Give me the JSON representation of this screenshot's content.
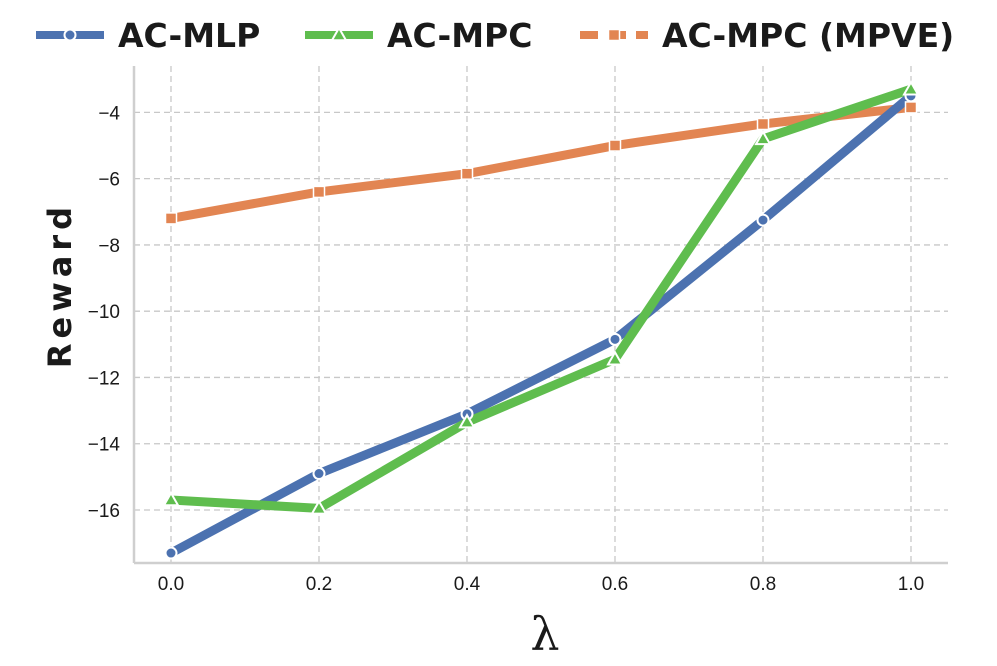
{
  "chart_data": {
    "type": "line",
    "title": "",
    "xlabel": "λ",
    "ylabel": "Reward",
    "x": [
      0.0,
      0.2,
      0.4,
      0.6,
      0.8,
      1.0
    ],
    "x_tick_labels": [
      "0.0",
      "0.2",
      "0.4",
      "0.6",
      "0.8",
      "1.0"
    ],
    "y_ticks": [
      -16,
      -14,
      -12,
      -10,
      -8,
      -6,
      -4
    ],
    "y_tick_labels": [
      "−16",
      "−14",
      "−12",
      "−10",
      "−8",
      "−6",
      "−4"
    ],
    "xlim": [
      -0.05,
      1.05
    ],
    "ylim": [
      -17.6,
      -2.6
    ],
    "grid": true,
    "legend_position": "top",
    "series": [
      {
        "name": "AC-MLP",
        "color": "#4c72b0",
        "marker": "circle",
        "linestyle": "solid",
        "values": [
          -17.3,
          -14.9,
          -13.1,
          -10.85,
          -7.25,
          -3.5
        ]
      },
      {
        "name": "AC-MPC",
        "color": "#5fbd4e",
        "marker": "triangle",
        "linestyle": "solid",
        "values": [
          -15.7,
          -15.95,
          -13.35,
          -11.45,
          -4.8,
          -3.3
        ]
      },
      {
        "name": "AC-MPC (MPVE)",
        "color": "#e28552",
        "marker": "square",
        "linestyle": "dashed",
        "values": [
          -7.2,
          -6.4,
          -5.85,
          -5.0,
          -4.35,
          -3.85
        ]
      }
    ]
  }
}
